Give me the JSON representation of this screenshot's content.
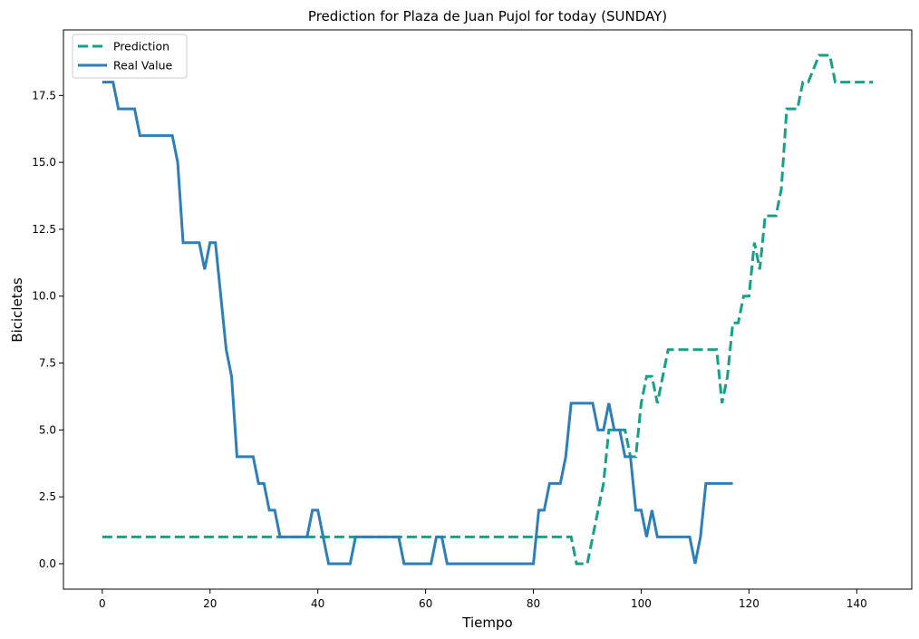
{
  "chart_data": {
    "type": "line",
    "title": "Prediction for Plaza de Juan Pujol for today (SUNDAY)",
    "xlabel": "Tiempo",
    "ylabel": "Bicicletas",
    "xlim": [
      -7.2,
      150.2
    ],
    "ylim": [
      -0.95,
      19.95
    ],
    "xticks": [
      0,
      20,
      40,
      60,
      80,
      100,
      120,
      140
    ],
    "xtick_labels": [
      "0",
      "20",
      "40",
      "60",
      "80",
      "100",
      "120",
      "140"
    ],
    "yticks": [
      0,
      2.5,
      5,
      7.5,
      10,
      12.5,
      15,
      17.5
    ],
    "ytick_labels": [
      "0.0",
      "2.5",
      "5.0",
      "7.5",
      "10.0",
      "12.5",
      "15.0",
      "17.5"
    ],
    "grid": false,
    "legend_position": "top-left",
    "series": [
      {
        "name": "Prediction",
        "color": "#16a085",
        "dash": true,
        "points": [
          [
            0,
            1
          ],
          [
            87,
            1
          ],
          [
            88,
            0
          ],
          [
            90,
            0
          ],
          [
            93,
            3
          ],
          [
            94,
            5
          ],
          [
            97,
            5
          ],
          [
            98,
            4
          ],
          [
            99,
            4
          ],
          [
            100,
            6
          ],
          [
            101,
            7
          ],
          [
            102,
            7
          ],
          [
            103,
            6
          ],
          [
            104,
            7
          ],
          [
            105,
            8
          ],
          [
            113,
            8
          ],
          [
            114,
            8
          ],
          [
            115,
            6
          ],
          [
            116,
            7
          ],
          [
            117,
            9
          ],
          [
            118,
            9
          ],
          [
            119,
            10
          ],
          [
            120,
            10
          ],
          [
            121,
            12
          ],
          [
            122,
            11
          ],
          [
            123,
            13
          ],
          [
            125,
            13
          ],
          [
            126,
            14
          ],
          [
            127,
            17
          ],
          [
            129,
            17
          ],
          [
            130,
            18
          ],
          [
            131,
            18
          ],
          [
            133,
            19
          ],
          [
            135,
            19
          ],
          [
            136,
            18
          ],
          [
            137,
            18
          ],
          [
            143,
            18
          ]
        ]
      },
      {
        "name": "Real Value",
        "color": "#2e7fb8",
        "dash": false,
        "points": [
          [
            0,
            18
          ],
          [
            1,
            18
          ],
          [
            2,
            18
          ],
          [
            3,
            17
          ],
          [
            4,
            17
          ],
          [
            5,
            17
          ],
          [
            6,
            17
          ],
          [
            7,
            16
          ],
          [
            8,
            16
          ],
          [
            9,
            16
          ],
          [
            10,
            16
          ],
          [
            11,
            16
          ],
          [
            12,
            16
          ],
          [
            13,
            16
          ],
          [
            14,
            15
          ],
          [
            15,
            12
          ],
          [
            16,
            12
          ],
          [
            17,
            12
          ],
          [
            18,
            12
          ],
          [
            19,
            11
          ],
          [
            20,
            12
          ],
          [
            21,
            12
          ],
          [
            22,
            10
          ],
          [
            23,
            8
          ],
          [
            24,
            7
          ],
          [
            25,
            4
          ],
          [
            26,
            4
          ],
          [
            27,
            4
          ],
          [
            28,
            4
          ],
          [
            29,
            3
          ],
          [
            30,
            3
          ],
          [
            31,
            2
          ],
          [
            32,
            2
          ],
          [
            33,
            1
          ],
          [
            34,
            1
          ],
          [
            35,
            1
          ],
          [
            36,
            1
          ],
          [
            37,
            1
          ],
          [
            38,
            1
          ],
          [
            39,
            2
          ],
          [
            40,
            2
          ],
          [
            41,
            1
          ],
          [
            42,
            0
          ],
          [
            43,
            0
          ],
          [
            44,
            0
          ],
          [
            45,
            0
          ],
          [
            46,
            0
          ],
          [
            47,
            1
          ],
          [
            48,
            1
          ],
          [
            49,
            1
          ],
          [
            50,
            1
          ],
          [
            51,
            1
          ],
          [
            52,
            1
          ],
          [
            53,
            1
          ],
          [
            54,
            1
          ],
          [
            55,
            1
          ],
          [
            56,
            0
          ],
          [
            57,
            0
          ],
          [
            58,
            0
          ],
          [
            59,
            0
          ],
          [
            60,
            0
          ],
          [
            61,
            0
          ],
          [
            62,
            1
          ],
          [
            63,
            1
          ],
          [
            64,
            0
          ],
          [
            65,
            0
          ],
          [
            66,
            0
          ],
          [
            67,
            0
          ],
          [
            68,
            0
          ],
          [
            69,
            0
          ],
          [
            70,
            0
          ],
          [
            71,
            0
          ],
          [
            72,
            0
          ],
          [
            73,
            0
          ],
          [
            74,
            0
          ],
          [
            75,
            0
          ],
          [
            76,
            0
          ],
          [
            77,
            0
          ],
          [
            78,
            0
          ],
          [
            79,
            0
          ],
          [
            80,
            0
          ],
          [
            81,
            2
          ],
          [
            82,
            2
          ],
          [
            83,
            3
          ],
          [
            84,
            3
          ],
          [
            85,
            3
          ],
          [
            86,
            4
          ],
          [
            87,
            6
          ],
          [
            88,
            6
          ],
          [
            89,
            6
          ],
          [
            90,
            6
          ],
          [
            91,
            6
          ],
          [
            92,
            5
          ],
          [
            93,
            5
          ],
          [
            94,
            6
          ],
          [
            95,
            5
          ],
          [
            96,
            5
          ],
          [
            97,
            4
          ],
          [
            98,
            4
          ],
          [
            99,
            2
          ],
          [
            100,
            2
          ],
          [
            101,
            1
          ],
          [
            102,
            2
          ],
          [
            103,
            1
          ],
          [
            104,
            1
          ],
          [
            105,
            1
          ],
          [
            106,
            1
          ],
          [
            107,
            1
          ],
          [
            108,
            1
          ],
          [
            109,
            1
          ],
          [
            110,
            0
          ],
          [
            111,
            1
          ],
          [
            112,
            3
          ],
          [
            113,
            3
          ],
          [
            114,
            3
          ],
          [
            115,
            3
          ],
          [
            116,
            3
          ],
          [
            117,
            3
          ]
        ]
      }
    ]
  }
}
